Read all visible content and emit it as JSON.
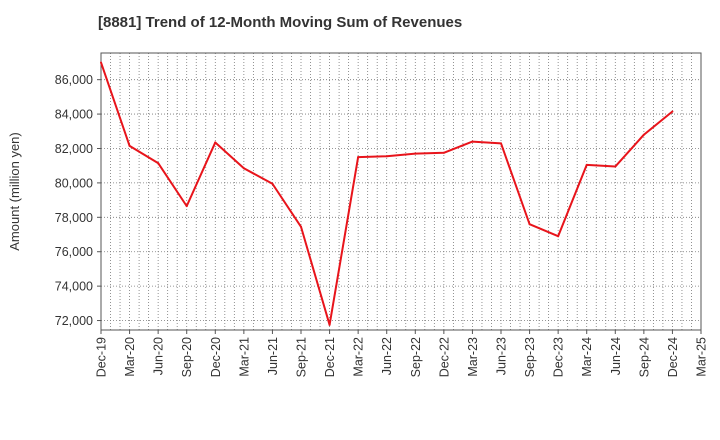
{
  "chart_data": {
    "type": "line",
    "title": "[8881]  Trend of 12-Month Moving Sum of Revenues",
    "xlabel": "",
    "ylabel": "Amount (million yen)",
    "x_tick_labels": [
      "Dec-19",
      "Mar-20",
      "Jun-20",
      "Sep-20",
      "Dec-20",
      "Mar-21",
      "Jun-21",
      "Sep-21",
      "Dec-21",
      "Mar-22",
      "Jun-22",
      "Sep-22",
      "Dec-22",
      "Mar-23",
      "Jun-23",
      "Sep-23",
      "Dec-23",
      "Mar-24",
      "Jun-24",
      "Sep-24",
      "Dec-24",
      "Mar-25"
    ],
    "y_ticks": [
      72000,
      74000,
      76000,
      78000,
      80000,
      82000,
      84000,
      86000
    ],
    "y_tick_labels": [
      "72,000",
      "74,000",
      "76,000",
      "78,000",
      "80,000",
      "82,000",
      "84,000",
      "86,000"
    ],
    "ylim": [
      71450,
      87550
    ],
    "grid": true,
    "series": [
      {
        "color": "#e8141b",
        "x": [
          "Dec-19",
          "Mar-20",
          "Jun-20",
          "Sep-20",
          "Dec-20",
          "Mar-21",
          "Jun-21",
          "Sep-21",
          "Dec-21",
          "Mar-22",
          "Jun-22",
          "Sep-22",
          "Dec-22",
          "Mar-23",
          "Jun-23",
          "Sep-23",
          "Dec-23",
          "Mar-24",
          "Jun-24",
          "Sep-24",
          "Dec-24"
        ],
        "values": [
          87000,
          82150,
          81150,
          78650,
          82350,
          80850,
          79950,
          77450,
          71750,
          81500,
          81550,
          81700,
          81750,
          82400,
          82300,
          77600,
          76900,
          81050,
          80950,
          82800,
          84150
        ]
      }
    ]
  }
}
